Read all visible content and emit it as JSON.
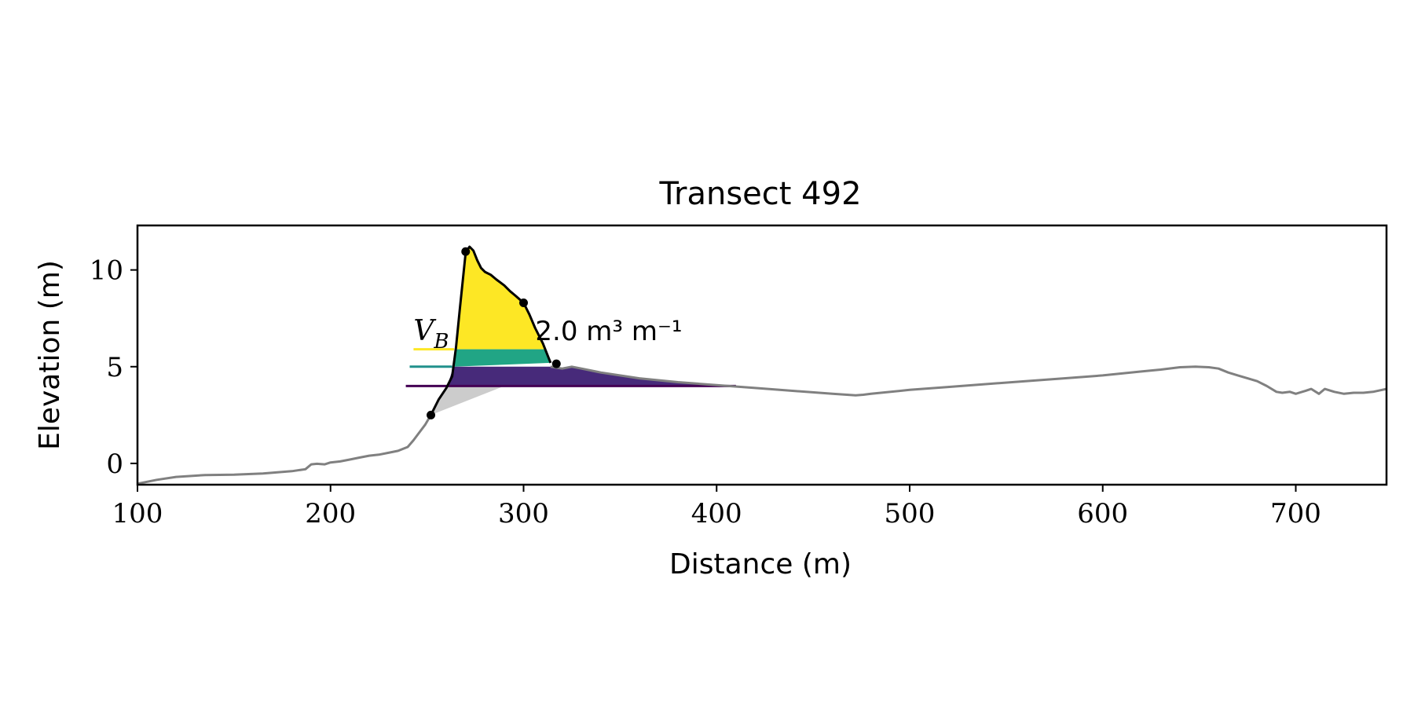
{
  "chart_data": {
    "type": "line",
    "title": "Transect 492",
    "xlabel": "Distance (m)",
    "ylabel": "Elevation (m)",
    "xlim": [
      100,
      747
    ],
    "ylim": [
      -1.1,
      12.3
    ],
    "xticks": [
      100,
      200,
      300,
      400,
      500,
      600,
      700
    ],
    "xtick_labels": [
      "100",
      "200",
      "300",
      "400",
      "500",
      "600",
      "700"
    ],
    "yticks": [
      0,
      5,
      10
    ],
    "ytick_labels": [
      "0",
      "5",
      "10"
    ],
    "grid": false,
    "annotation": {
      "symbol": "V",
      "subscript": "B",
      "text": "2.0 m³ m⁻¹",
      "x": 243,
      "y": 6.3
    },
    "colors": {
      "profile": "#808080",
      "dune_outline": "#000000",
      "upper_fill": "#fde725",
      "middle_fill": "#21a585",
      "lower_fill": "#472a7a",
      "gray_fill": "#cccccc",
      "level_upper": "#fde725",
      "level_middle": "#21918c",
      "level_lower": "#440154"
    },
    "levels": [
      {
        "level": "upper",
        "y": 5.9,
        "x_start": 243,
        "x_end": 264
      },
      {
        "level": "middle",
        "y": 5.0,
        "x_start": 241,
        "x_end": 263
      },
      {
        "level": "lower",
        "y": 4.0,
        "x_start": 239,
        "x_end": 410
      }
    ],
    "series": [
      {
        "role": "profile",
        "x": [
          100,
          110,
          120,
          135,
          150,
          165,
          180,
          187,
          190,
          193,
          197,
          200,
          205,
          210,
          215,
          220,
          225,
          230,
          235,
          240,
          243,
          246,
          249,
          252
        ],
        "y": [
          -1.05,
          -0.85,
          -0.7,
          -0.6,
          -0.58,
          -0.52,
          -0.4,
          -0.3,
          -0.05,
          -0.02,
          -0.05,
          0.05,
          0.1,
          0.2,
          0.3,
          0.4,
          0.45,
          0.55,
          0.65,
          0.85,
          1.2,
          1.6,
          2.0,
          2.5
        ]
      },
      {
        "role": "profile",
        "x": [
          314,
          320,
          325,
          330,
          340,
          360,
          380,
          400,
          420,
          440,
          460,
          472,
          476,
          480,
          500,
          520,
          540,
          560,
          580,
          600,
          620,
          630,
          640,
          648,
          655,
          660,
          665,
          670,
          675,
          680,
          685,
          690,
          693,
          697,
          700,
          705,
          708,
          712,
          715,
          720,
          725,
          730,
          735,
          740,
          747
        ],
        "y": [
          5.0,
          4.9,
          5.0,
          4.9,
          4.7,
          4.4,
          4.2,
          4.05,
          3.9,
          3.75,
          3.6,
          3.52,
          3.55,
          3.6,
          3.8,
          3.95,
          4.1,
          4.25,
          4.4,
          4.55,
          4.75,
          4.85,
          4.97,
          5.0,
          4.97,
          4.9,
          4.7,
          4.55,
          4.4,
          4.25,
          4.0,
          3.7,
          3.65,
          3.7,
          3.6,
          3.75,
          3.85,
          3.6,
          3.85,
          3.7,
          3.6,
          3.65,
          3.65,
          3.7,
          3.85
        ]
      },
      {
        "role": "dune",
        "x": [
          252,
          256,
          260,
          263,
          265,
          267,
          270,
          272,
          274,
          276,
          278,
          280,
          283,
          286,
          290,
          293,
          296,
          300,
          303,
          306,
          310,
          314
        ],
        "y": [
          2.5,
          3.3,
          3.9,
          4.5,
          6.0,
          8.0,
          10.9,
          11.2,
          11.0,
          10.5,
          10.1,
          9.9,
          9.75,
          9.5,
          9.2,
          8.9,
          8.65,
          8.3,
          7.7,
          7.0,
          6.2,
          5.2
        ]
      }
    ],
    "markers": [
      {
        "x": 252,
        "y": 2.5
      },
      {
        "x": 270,
        "y": 10.95
      },
      {
        "x": 300,
        "y": 8.3
      },
      {
        "x": 317,
        "y": 5.15
      }
    ]
  }
}
